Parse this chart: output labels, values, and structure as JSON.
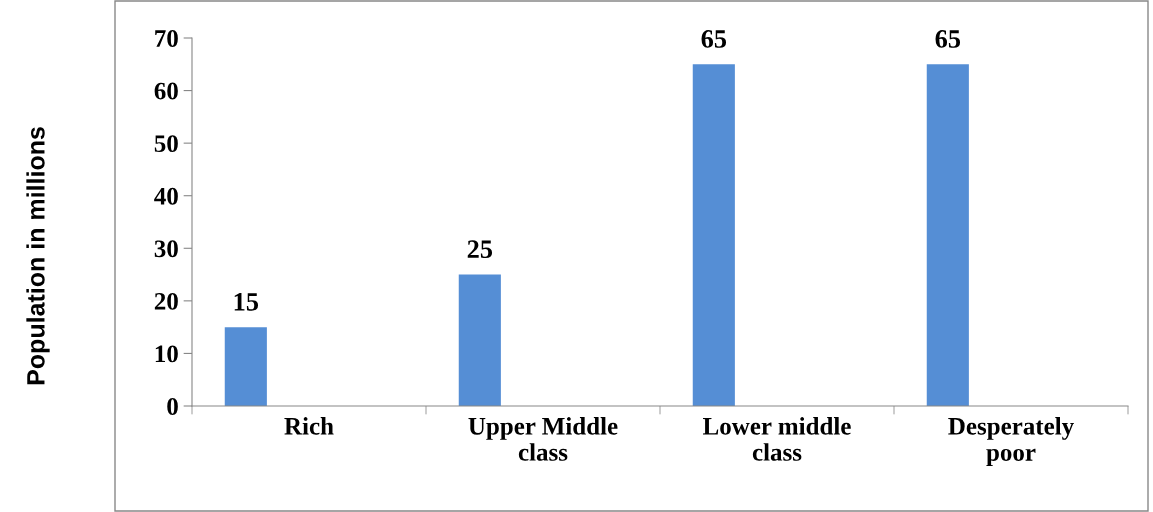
{
  "chart_data": {
    "type": "bar",
    "ylabel": "Population in millions",
    "categories": [
      "Rich",
      "Upper Middle\nclass",
      "Lower middle\nclass",
      "Desperately\npoor"
    ],
    "values": [
      15,
      25,
      65,
      65
    ],
    "color": "#558ed5",
    "ylim": [
      0,
      70
    ],
    "yticks": [
      0,
      10,
      20,
      30,
      40,
      50,
      60,
      70
    ],
    "grid": false,
    "data_labels": true
  }
}
